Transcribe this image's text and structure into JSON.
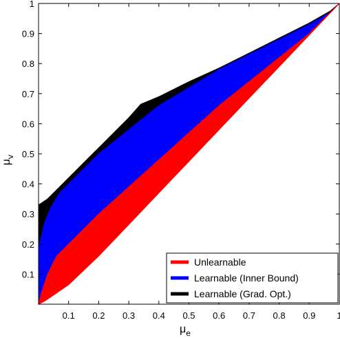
{
  "chart_data": {
    "type": "area",
    "xlabel": "μ",
    "xlabel_sub": "e",
    "ylabel": "μ",
    "ylabel_sub": "v",
    "xlim": [
      0,
      1
    ],
    "ylim": [
      0,
      1
    ],
    "x_ticks": [
      0.1,
      0.2,
      0.3,
      0.4,
      0.5,
      0.6,
      0.7,
      0.8,
      0.9,
      1
    ],
    "x_tick_labels": [
      "0.1",
      "0.2",
      "0.3",
      "0.4",
      "0.5",
      "0.6",
      "0.7",
      "0.8",
      "0.9",
      "1"
    ],
    "y_ticks": [
      0.1,
      0.2,
      0.3,
      0.4,
      0.5,
      0.6,
      0.7,
      0.8,
      0.9,
      1
    ],
    "y_tick_labels": [
      "0.1",
      "0.2",
      "0.3",
      "0.4",
      "0.5",
      "0.6",
      "0.7",
      "0.8",
      "0.9",
      "1"
    ],
    "grid": false,
    "legend_position": "bottom-right",
    "series": [
      {
        "name": "Learnable (Grad. Opt.)",
        "color": "#000000",
        "outline": [
          [
            0,
            0
          ],
          [
            0,
            0.33
          ],
          [
            0.03,
            0.35
          ],
          [
            0.07,
            0.39
          ],
          [
            0.1,
            0.42
          ],
          [
            0.15,
            0.47
          ],
          [
            0.2,
            0.52
          ],
          [
            0.25,
            0.57
          ],
          [
            0.3,
            0.62
          ],
          [
            0.34,
            0.665
          ],
          [
            0.4,
            0.69
          ],
          [
            0.5,
            0.74
          ],
          [
            0.6,
            0.785
          ],
          [
            0.7,
            0.835
          ],
          [
            0.8,
            0.885
          ],
          [
            0.9,
            0.935
          ],
          [
            0.97,
            0.975
          ],
          [
            1,
            1
          ],
          [
            0.9,
            0.91
          ],
          [
            0.8,
            0.83
          ],
          [
            0.7,
            0.75
          ],
          [
            0.6,
            0.67
          ],
          [
            0.5,
            0.59
          ],
          [
            0.4,
            0.5
          ],
          [
            0.3,
            0.41
          ],
          [
            0.2,
            0.31
          ],
          [
            0.1,
            0.2
          ],
          [
            0.04,
            0.12
          ],
          [
            0.01,
            0.05
          ]
        ]
      },
      {
        "name": "Learnable (Inner Bound)",
        "color": "#0000ff",
        "outline": [
          [
            0,
            0
          ],
          [
            0,
            0.19
          ],
          [
            0.01,
            0.23
          ],
          [
            0.02,
            0.27
          ],
          [
            0.04,
            0.32
          ],
          [
            0.07,
            0.37
          ],
          [
            0.1,
            0.4
          ],
          [
            0.15,
            0.45
          ],
          [
            0.2,
            0.5
          ],
          [
            0.25,
            0.54
          ],
          [
            0.3,
            0.58
          ],
          [
            0.35,
            0.62
          ],
          [
            0.4,
            0.66
          ],
          [
            0.5,
            0.72
          ],
          [
            0.6,
            0.78
          ],
          [
            0.7,
            0.83
          ],
          [
            0.8,
            0.88
          ],
          [
            0.9,
            0.93
          ],
          [
            0.97,
            0.97
          ],
          [
            1,
            1
          ],
          [
            0.9,
            0.9
          ],
          [
            0.8,
            0.82
          ],
          [
            0.7,
            0.74
          ],
          [
            0.6,
            0.66
          ],
          [
            0.5,
            0.57
          ],
          [
            0.4,
            0.48
          ],
          [
            0.3,
            0.39
          ],
          [
            0.2,
            0.3
          ],
          [
            0.1,
            0.19
          ],
          [
            0.05,
            0.12
          ],
          [
            0.02,
            0.06
          ],
          [
            0.005,
            0.02
          ]
        ]
      },
      {
        "name": "Unlearnable",
        "color": "#ff0000",
        "outline": [
          [
            0,
            0
          ],
          [
            0.01,
            0.04
          ],
          [
            0.03,
            0.1
          ],
          [
            0.06,
            0.16
          ],
          [
            0.1,
            0.2
          ],
          [
            0.2,
            0.3
          ],
          [
            0.3,
            0.39
          ],
          [
            0.4,
            0.48
          ],
          [
            0.5,
            0.57
          ],
          [
            0.6,
            0.66
          ],
          [
            0.7,
            0.74
          ],
          [
            0.8,
            0.82
          ],
          [
            0.9,
            0.9
          ],
          [
            1,
            1
          ],
          [
            0.9,
            0.895
          ],
          [
            0.8,
            0.79
          ],
          [
            0.7,
            0.685
          ],
          [
            0.6,
            0.58
          ],
          [
            0.5,
            0.475
          ],
          [
            0.4,
            0.37
          ],
          [
            0.3,
            0.265
          ],
          [
            0.2,
            0.16
          ],
          [
            0.1,
            0.065
          ],
          [
            0.05,
            0.03
          ],
          [
            0.02,
            0.01
          ]
        ]
      }
    ]
  }
}
